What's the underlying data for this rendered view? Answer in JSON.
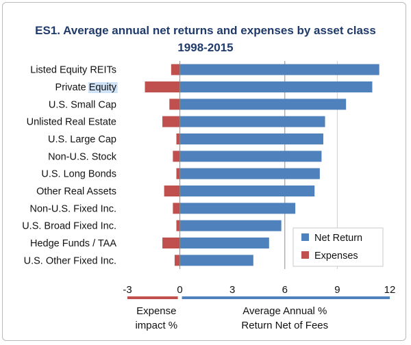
{
  "chart_data": {
    "type": "bar",
    "orientation": "horizontal",
    "title": "ES1. Average annual net returns and expenses by asset class",
    "subtitle": "1998-2015",
    "categories": [
      "Listed Equity REITs",
      "Private Equity",
      "U.S. Small Cap",
      "Unlisted Real Estate",
      "U.S. Large Cap",
      "Non-U.S. Stock",
      "U.S. Long Bonds",
      "Other Real Assets",
      "Non-U.S. Fixed Inc.",
      "U.S. Broad Fixed Inc.",
      "Hedge Funds / TAA",
      "U.S. Other Fixed Inc."
    ],
    "series": [
      {
        "name": "Net Return",
        "color": "#4f81bd",
        "values": [
          11.4,
          11.0,
          9.5,
          8.3,
          8.2,
          8.1,
          8.0,
          7.7,
          6.6,
          5.8,
          5.1,
          4.2
        ]
      },
      {
        "name": "Expenses",
        "color": "#c0504d",
        "values": [
          -0.5,
          -2.0,
          -0.6,
          -1.0,
          -0.2,
          -0.4,
          -0.2,
          -0.9,
          -0.4,
          -0.2,
          -1.0,
          -0.3
        ]
      }
    ],
    "xlim": [
      -3,
      12
    ],
    "xticks": [
      "-3",
      "0",
      "3",
      "6",
      "9",
      "12"
    ],
    "grid": "vertical",
    "legend_position": "bottom-right",
    "axis_bars": {
      "left": {
        "label_line1": "Expense",
        "label_line2": "impact %",
        "color": "#c0504d"
      },
      "right": {
        "label_line1": "Average Annual %",
        "label_line2": "Return Net of Fees",
        "color": "#4f81bd"
      }
    },
    "highlighted_text": {
      "category_index": 1,
      "word": "Equity",
      "color": "#cfe2f6"
    }
  }
}
